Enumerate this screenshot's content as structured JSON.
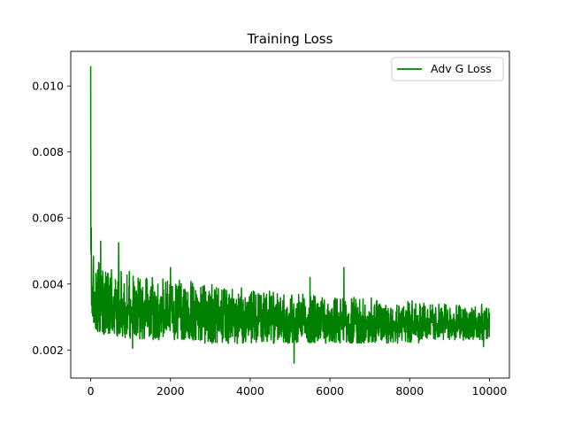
{
  "chart_data": {
    "type": "line",
    "title": "Training Loss",
    "xlabel": "",
    "ylabel": "",
    "xlim": [
      -500,
      10500
    ],
    "ylim": [
      0.00115,
      0.01105
    ],
    "x_ticks": [
      0,
      2000,
      4000,
      6000,
      8000,
      10000
    ],
    "x_tick_labels": [
      "0",
      "2000",
      "4000",
      "6000",
      "8000",
      "10000"
    ],
    "y_ticks": [
      0.002,
      0.004,
      0.006,
      0.008,
      0.01
    ],
    "y_tick_labels": [
      "0.002",
      "0.004",
      "0.006",
      "0.008",
      "0.010"
    ],
    "grid": false,
    "legend_position": "top-right",
    "series": [
      {
        "name": "Adv G Loss",
        "color": "#008000",
        "sampling_interval": 250,
        "x": [
          0,
          10,
          25,
          50,
          100,
          250,
          500,
          750,
          1000,
          1250,
          1500,
          1750,
          2000,
          2250,
          2500,
          2750,
          3000,
          3250,
          3500,
          3750,
          4000,
          4250,
          4500,
          4750,
          5000,
          5250,
          5500,
          5750,
          6000,
          6250,
          6500,
          6750,
          7000,
          7250,
          7500,
          7750,
          8000,
          8250,
          8500,
          8750,
          9000,
          9250,
          9500,
          9750,
          10000
        ],
        "mean": [
          0.0045,
          0.0042,
          0.0039,
          0.0037,
          0.0035,
          0.0034,
          0.00335,
          0.0033,
          0.00328,
          0.00325,
          0.00322,
          0.0032,
          0.00318,
          0.00316,
          0.00314,
          0.00312,
          0.0031,
          0.00308,
          0.00306,
          0.00304,
          0.00302,
          0.003,
          0.00299,
          0.00298,
          0.00297,
          0.00296,
          0.00295,
          0.00294,
          0.00293,
          0.00292,
          0.00291,
          0.0029,
          0.00289,
          0.00288,
          0.00287,
          0.00286,
          0.00285,
          0.00284,
          0.00283,
          0.00283,
          0.00282,
          0.00282,
          0.00281,
          0.00281,
          0.0028
        ],
        "band_low": [
          0.003,
          0.0029,
          0.0028,
          0.0027,
          0.0026,
          0.0025,
          0.0024,
          0.0024,
          0.0023,
          0.0023,
          0.0023,
          0.0023,
          0.0023,
          0.0023,
          0.0023,
          0.0022,
          0.0022,
          0.0022,
          0.0022,
          0.0022,
          0.0022,
          0.0022,
          0.0022,
          0.0022,
          0.0022,
          0.0022,
          0.0022,
          0.0022,
          0.0022,
          0.0022,
          0.0022,
          0.0022,
          0.0022,
          0.0022,
          0.0022,
          0.0022,
          0.0022,
          0.0022,
          0.0023,
          0.0023,
          0.0023,
          0.0023,
          0.0023,
          0.0023,
          0.0023
        ],
        "band_high": [
          0.0106,
          0.0057,
          0.0052,
          0.005,
          0.0048,
          0.0047,
          0.0045,
          0.0044,
          0.0044,
          0.0043,
          0.0042,
          0.0042,
          0.0042,
          0.0041,
          0.0041,
          0.004,
          0.004,
          0.0039,
          0.0039,
          0.0039,
          0.0038,
          0.0038,
          0.0038,
          0.0037,
          0.0037,
          0.0037,
          0.0037,
          0.0036,
          0.0036,
          0.0036,
          0.0036,
          0.0036,
          0.0036,
          0.0035,
          0.0035,
          0.0035,
          0.0035,
          0.0035,
          0.0034,
          0.0034,
          0.0034,
          0.0034,
          0.0034,
          0.0034,
          0.0034
        ],
        "spikes": [
          {
            "x": 0,
            "y": 0.0106
          },
          {
            "x": 15,
            "y": 0.0057
          },
          {
            "x": 250,
            "y": 0.0053
          },
          {
            "x": 700,
            "y": 0.00525
          },
          {
            "x": 2000,
            "y": 0.0045
          },
          {
            "x": 5500,
            "y": 0.0042
          },
          {
            "x": 6350,
            "y": 0.0045
          },
          {
            "x": 5100,
            "y": 0.0016
          },
          {
            "x": 1050,
            "y": 0.00205
          },
          {
            "x": 9850,
            "y": 0.0021
          }
        ]
      }
    ]
  }
}
